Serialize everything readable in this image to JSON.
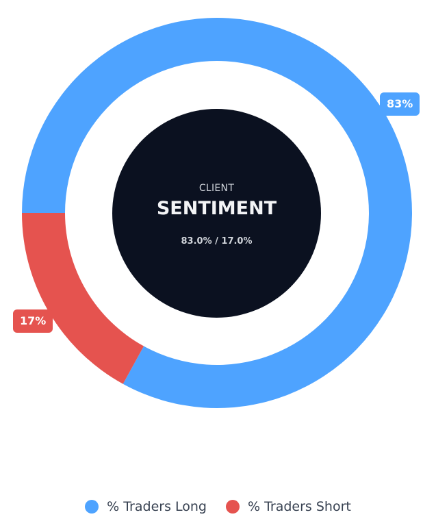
{
  "chart_data": {
    "type": "pie",
    "categories": [
      "% Traders Long",
      "% Traders Short"
    ],
    "values": [
      83,
      17
    ],
    "value_labels": [
      "83%",
      "17%"
    ],
    "colors": [
      "#4ea3ff",
      "#e5534f"
    ],
    "legend_position": "bottom",
    "center": {
      "small_label": "CLIENT",
      "title": "SENTIMENT",
      "subtitle": "83.0% / 17.0%",
      "background": "#0b1120"
    }
  }
}
